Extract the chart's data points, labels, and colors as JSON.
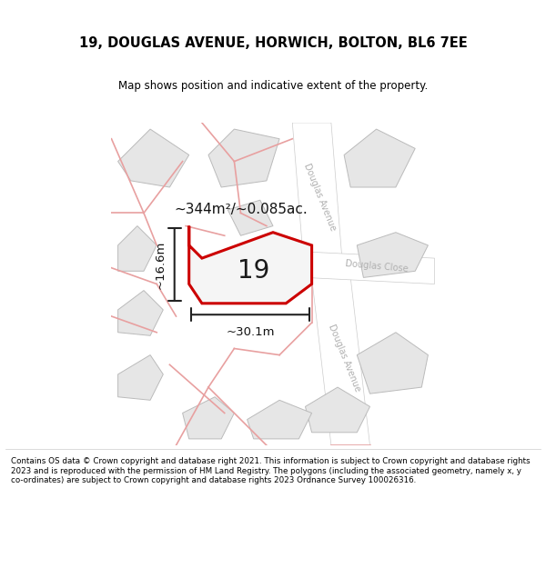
{
  "title": "19, DOUGLAS AVENUE, HORWICH, BOLTON, BL6 7EE",
  "subtitle": "Map shows position and indicative extent of the property.",
  "footer": "Contains OS data © Crown copyright and database right 2021. This information is subject to Crown copyright and database rights 2023 and is reproduced with the permission of HM Land Registry. The polygons (including the associated geometry, namely x, y co-ordinates) are subject to Crown copyright and database rights 2023 Ordnance Survey 100026316.",
  "area_label": "~344m²/~0.085ac.",
  "plot_number": "19",
  "dim_width": "~30.1m",
  "dim_height": "~16.6m",
  "plot_outline_color": "#cc0000",
  "dim_color": "#222222",
  "bg_color": "#ffffff",
  "map_bg": "#f7f7f7",
  "building_fill": "#e6e6e6",
  "building_edge": "#bbbbbb",
  "road_fill": "#ffffff",
  "road_line": "#e8a0a0",
  "street_label_color": "#b0b0b0"
}
